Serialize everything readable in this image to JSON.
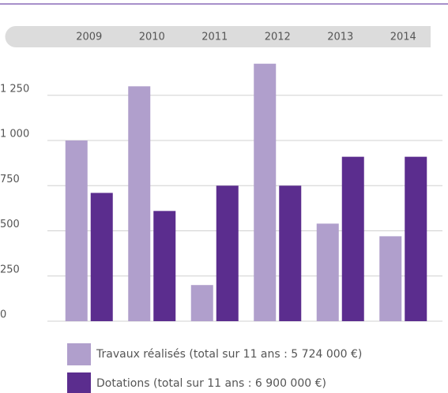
{
  "chart_data": {
    "type": "bar",
    "categories": [
      "2009",
      "2010",
      "2011",
      "2012",
      "2013",
      "2014"
    ],
    "series": [
      {
        "name": "Travaux réalisés (total sur 11 ans : 5 724 000 €)",
        "color": "#b09fcc",
        "values": [
          1000,
          1300,
          200,
          1425,
          540,
          470
        ]
      },
      {
        "name": "Dotations (total sur 11 ans : 6 900 000 €)",
        "color": "#5b2d8e",
        "values": [
          710,
          610,
          750,
          750,
          910,
          910
        ]
      }
    ],
    "ylim": [
      0,
      1450
    ],
    "yticks": [
      0,
      250,
      500,
      750,
      {
        "value": 1000,
        "label": "1 000"
      },
      {
        "value": 1250,
        "label": "1 250"
      }
    ],
    "grid": true
  }
}
